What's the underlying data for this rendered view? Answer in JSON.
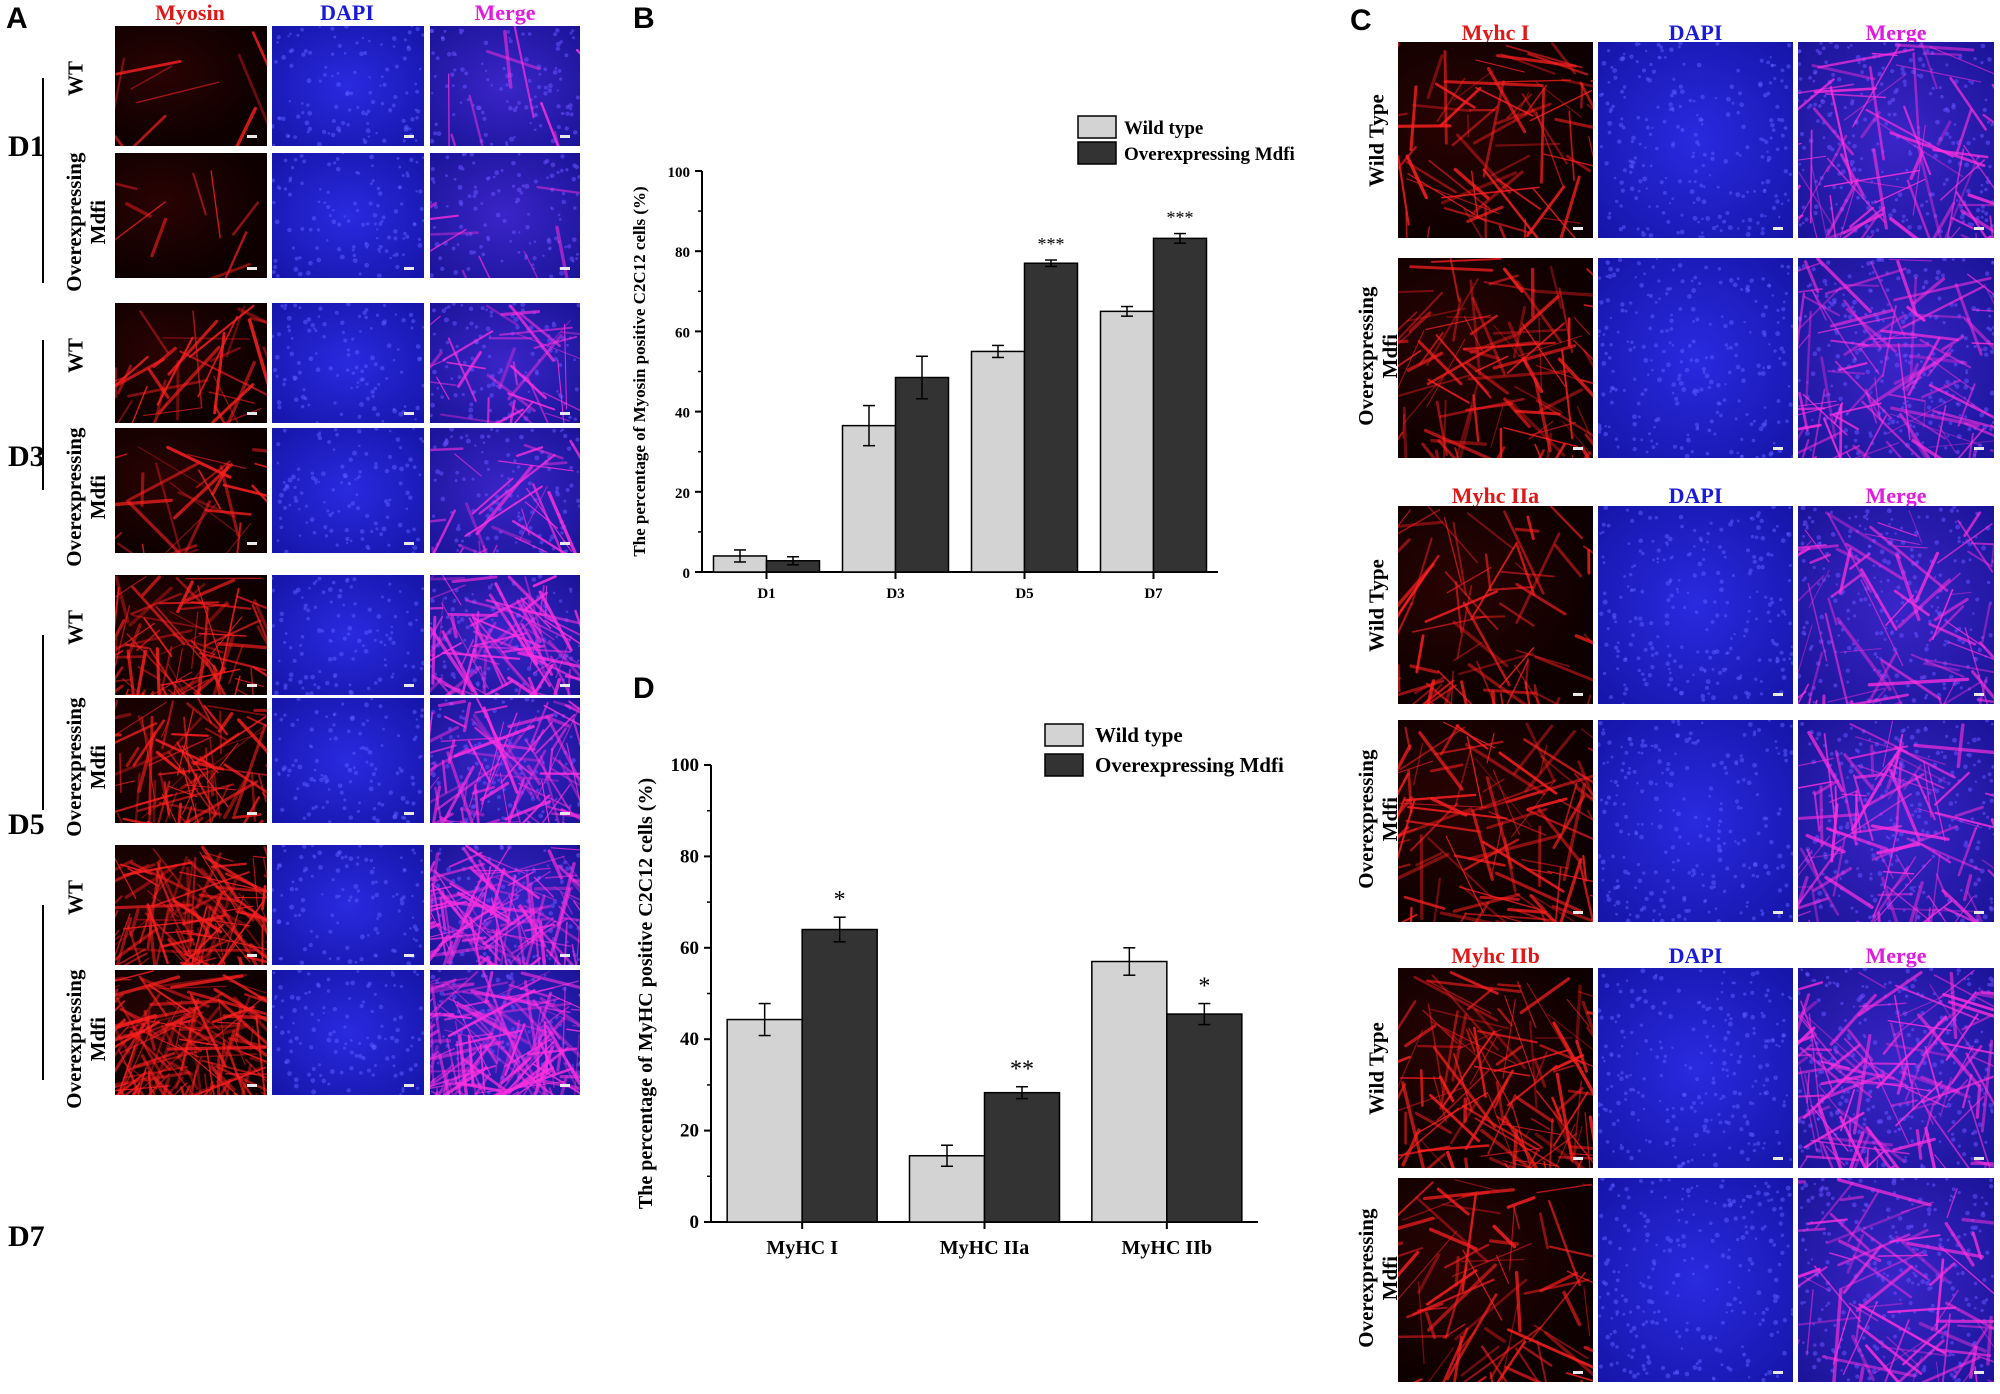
{
  "panels": {
    "A": {
      "letter": "A",
      "columns": [
        "Myosin",
        "DAPI",
        "Merge"
      ],
      "days": [
        "D1",
        "D3",
        "D5",
        "D7"
      ],
      "row_labels": {
        "wt": "WT",
        "over_1": "Overexpressing",
        "over_2": "Mdfi"
      }
    },
    "B": {
      "letter": "B"
    },
    "C": {
      "letter": "C",
      "groups": [
        {
          "columns": [
            "Myhc I",
            "DAPI",
            "Merge"
          ]
        },
        {
          "columns": [
            "Myhc IIa",
            "DAPI",
            "Merge"
          ]
        },
        {
          "columns": [
            "Myhc IIb",
            "DAPI",
            "Merge"
          ]
        }
      ],
      "row_labels": {
        "wt": "Wild Type",
        "over_1": "Overexpressing",
        "over_2": "Mdfi"
      }
    },
    "D": {
      "letter": "D"
    }
  },
  "colors": {
    "red_label": "#e01818",
    "blue_label": "#1a1ad8",
    "magenta_label": "#e01ce0",
    "wild_type_bar": "#d3d3d3",
    "overexpressing_bar": "#333333"
  },
  "chart_data": [
    {
      "panel": "B",
      "type": "bar",
      "categories": [
        "D1",
        "D3",
        "D5",
        "D7"
      ],
      "ylabel": "The percentage of Myosin positive C2C12 cells (%)",
      "ylim": [
        0,
        100
      ],
      "yticks": [
        0,
        20,
        40,
        60,
        80,
        100
      ],
      "legend_position": "top-right",
      "series": [
        {
          "name": "Wild type",
          "values": [
            4,
            36.5,
            55,
            65
          ],
          "errors": [
            1.5,
            5,
            1.5,
            1.2
          ],
          "color": "#d3d3d3"
        },
        {
          "name": "Overexpressing Mdfi",
          "values": [
            2.8,
            48.5,
            77,
            83.2
          ],
          "errors": [
            1,
            5.3,
            0.8,
            1.2
          ],
          "color": "#333333"
        }
      ],
      "annotations": [
        {
          "category": "D5",
          "series": 1,
          "text": "***"
        },
        {
          "category": "D7",
          "series": 1,
          "text": "***"
        }
      ]
    },
    {
      "panel": "D",
      "type": "bar",
      "categories": [
        "MyHC I",
        "MyHC IIa",
        "MyHC IIb"
      ],
      "ylabel": "The percentage of MyHC positive C2C12 cells (%)",
      "ylim": [
        0,
        100
      ],
      "yticks": [
        0,
        20,
        40,
        60,
        80,
        100
      ],
      "legend_position": "top-right",
      "series": [
        {
          "name": "Wild type",
          "values": [
            44.3,
            14.5,
            57
          ],
          "errors": [
            3.5,
            2.3,
            3
          ],
          "color": "#d3d3d3"
        },
        {
          "name": "Overexpressing Mdfi",
          "values": [
            64,
            28.3,
            45.5
          ],
          "errors": [
            2.7,
            1.3,
            2.3
          ],
          "color": "#333333"
        }
      ],
      "annotations": [
        {
          "category": "MyHC I",
          "series": 1,
          "text": "*"
        },
        {
          "category": "MyHC IIa",
          "series": 1,
          "text": "**"
        },
        {
          "category": "MyHC IIb",
          "series": 1,
          "text": "*"
        }
      ]
    }
  ]
}
